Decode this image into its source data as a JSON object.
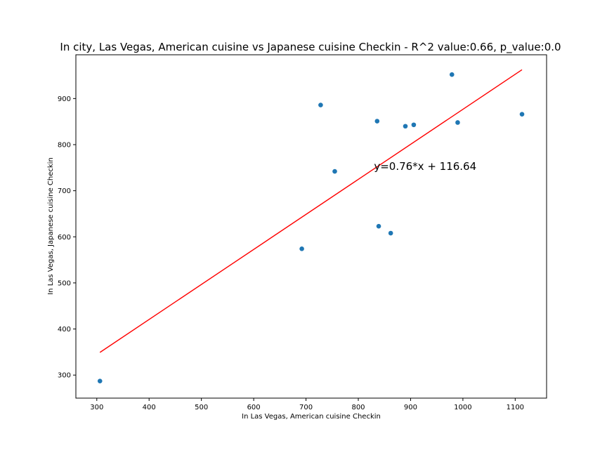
{
  "chart_data": {
    "type": "scatter",
    "title": "In city, Las Vegas, American cuisine vs Japanese cuisine Checkin - R^2 value:0.66, p_value:0.0",
    "xlabel": "In Las Vegas, American cuisine Checkin",
    "ylabel": "In Las Vegas, Japanese cuisine Checkin",
    "xlim": [
      260,
      1160
    ],
    "ylim": [
      250,
      995
    ],
    "xticks": [
      300,
      400,
      500,
      600,
      700,
      800,
      900,
      1000,
      1100
    ],
    "yticks": [
      300,
      400,
      500,
      600,
      700,
      800,
      900
    ],
    "grid": false,
    "points": [
      {
        "x": 306,
        "y": 287
      },
      {
        "x": 692,
        "y": 574
      },
      {
        "x": 728,
        "y": 886
      },
      {
        "x": 755,
        "y": 742
      },
      {
        "x": 836,
        "y": 851
      },
      {
        "x": 839,
        "y": 623
      },
      {
        "x": 862,
        "y": 608
      },
      {
        "x": 890,
        "y": 840
      },
      {
        "x": 906,
        "y": 843
      },
      {
        "x": 979,
        "y": 952
      },
      {
        "x": 990,
        "y": 848
      },
      {
        "x": 1113,
        "y": 866
      }
    ],
    "point_color": "#1f77b4",
    "regression": {
      "slope": 0.76,
      "intercept": 116.64,
      "x_range": [
        306,
        1113
      ],
      "color": "#ff0000",
      "equation_label": "y=0.76*x + 116.64",
      "label_at": {
        "x": 830,
        "y": 745
      }
    }
  }
}
